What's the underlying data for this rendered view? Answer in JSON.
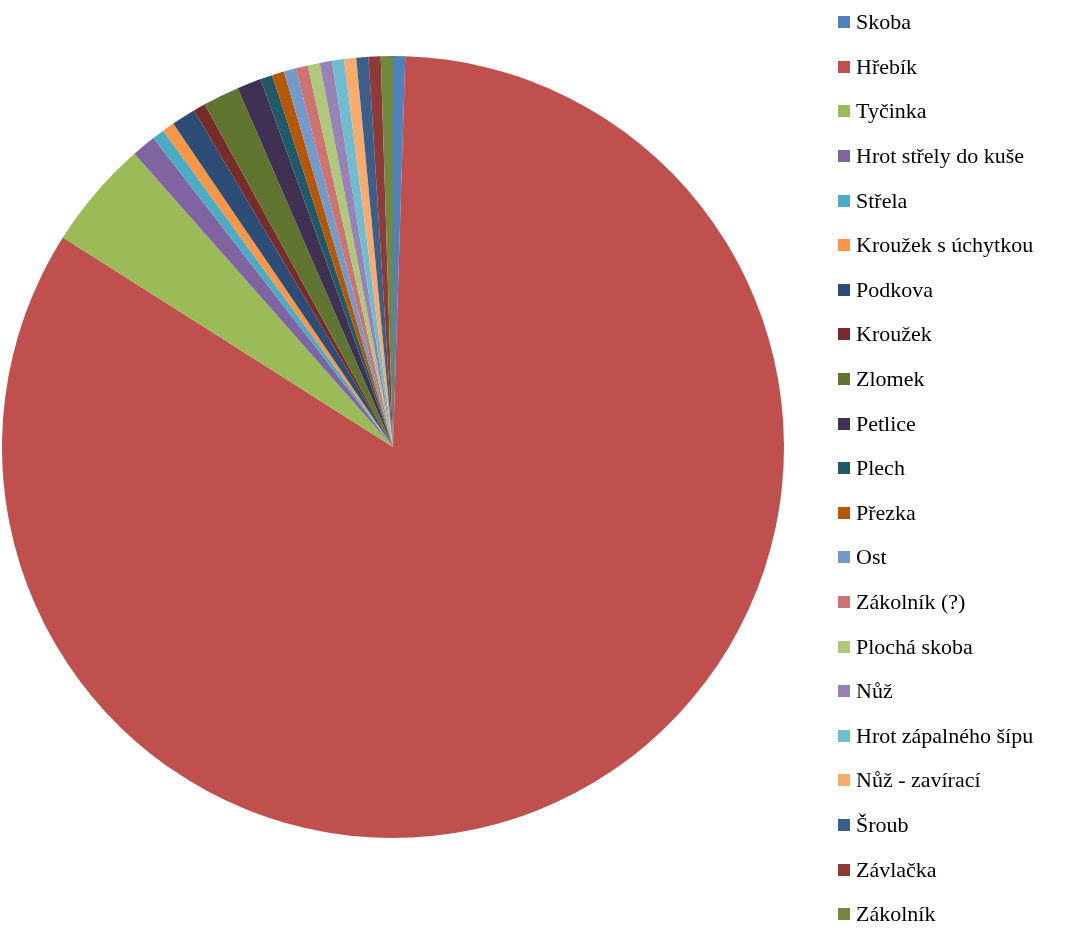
{
  "chart_data": {
    "type": "pie",
    "legend": "right",
    "categories": [
      "Skoba",
      "Hřebík",
      "Tyčinka",
      "Hrot střely do kuše",
      "Střela",
      "Kroužek s úchytkou",
      "Podkova",
      "Kroužek",
      "Zlomek",
      "Petlice",
      "Plech",
      "Přezka",
      "Ost",
      "Zákolník (?)",
      "Plochá skoba",
      "Nůž",
      "Hrot zápalného šípu",
      "Nůž - zavírací",
      "Šroub",
      "Závlačka",
      "Zákolník"
    ],
    "values": [
      0.5,
      83.5,
      4.5,
      1,
      0.5,
      0.5,
      1,
      0.5,
      1.5,
      1,
      0.5,
      0.5,
      0.5,
      0.5,
      0.5,
      0.5,
      0.5,
      0.5,
      0.5,
      0.5,
      0.5
    ],
    "colors": [
      "#4f81bd",
      "#c0504d",
      "#9bbb59",
      "#8064a2",
      "#4bacc6",
      "#f79646",
      "#2c4d75",
      "#772c2a",
      "#5f7530",
      "#403152",
      "#215968",
      "#b65708",
      "#729aca",
      "#cd7371",
      "#afc97a",
      "#9983b5",
      "#6fbdd1",
      "#f9ab6b",
      "#3a5f8b",
      "#8e3a38",
      "#71893f"
    ]
  }
}
